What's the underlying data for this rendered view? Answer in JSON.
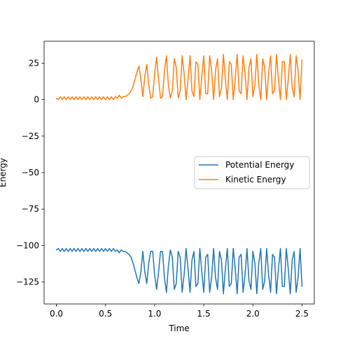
{
  "chart_data": {
    "type": "line",
    "title": "",
    "xlabel": "Time",
    "ylabel": "Energy",
    "xlim": [
      -0.125,
      2.625
    ],
    "ylim": [
      -140,
      40
    ],
    "xticks": [
      0.0,
      0.5,
      1.0,
      1.5,
      2.0,
      2.5
    ],
    "xtick_labels": [
      "0.0",
      "0.5",
      "1.0",
      "1.5",
      "2.0",
      "2.5"
    ],
    "yticks": [
      25,
      0,
      -25,
      -50,
      -75,
      -100,
      -125
    ],
    "ytick_labels": [
      "25",
      "0",
      "−25",
      "−50",
      "−75",
      "−100",
      "−125"
    ],
    "grid": false,
    "legend_position": "center-right",
    "series": [
      {
        "name": "Potential Energy",
        "color": "#1f77b4",
        "x": [
          0.0,
          0.02,
          0.04,
          0.06,
          0.08,
          0.1,
          0.12,
          0.14,
          0.16,
          0.18,
          0.2,
          0.22,
          0.24,
          0.26,
          0.28,
          0.3,
          0.32,
          0.34,
          0.36,
          0.38,
          0.4,
          0.42,
          0.44,
          0.46,
          0.48,
          0.5,
          0.52,
          0.54,
          0.56,
          0.58,
          0.6,
          0.62,
          0.64,
          0.66,
          0.68,
          0.7,
          0.72,
          0.74,
          0.76,
          0.78,
          0.8,
          0.82,
          0.84,
          0.86,
          0.88,
          0.9,
          0.92,
          0.94,
          0.96,
          0.98,
          1.0,
          1.02,
          1.04,
          1.06,
          1.08,
          1.1,
          1.12,
          1.14,
          1.16,
          1.18,
          1.2,
          1.22,
          1.24,
          1.26,
          1.28,
          1.3,
          1.32,
          1.34,
          1.36,
          1.38,
          1.4,
          1.42,
          1.44,
          1.46,
          1.48,
          1.5,
          1.52,
          1.54,
          1.56,
          1.58,
          1.6,
          1.62,
          1.64,
          1.66,
          1.68,
          1.7,
          1.72,
          1.74,
          1.76,
          1.78,
          1.8,
          1.82,
          1.84,
          1.86,
          1.88,
          1.9,
          1.92,
          1.94,
          1.96,
          1.98,
          2.0,
          2.02,
          2.04,
          2.06,
          2.08,
          2.1,
          2.12,
          2.14,
          2.16,
          2.18,
          2.2,
          2.22,
          2.24,
          2.26,
          2.28,
          2.3,
          2.32,
          2.34,
          2.36,
          2.38,
          2.4,
          2.42,
          2.44,
          2.46,
          2.48,
          2.5
        ],
        "values": [
          -103,
          -102,
          -104,
          -102,
          -104,
          -102,
          -104,
          -102,
          -104,
          -102,
          -104,
          -102,
          -104,
          -102,
          -104,
          -102,
          -104,
          -102,
          -104,
          -102,
          -104,
          -102,
          -104,
          -102,
          -104,
          -102,
          -104,
          -102,
          -104,
          -102,
          -104,
          -103,
          -105,
          -103,
          -104,
          -104,
          -105,
          -106,
          -108,
          -112,
          -117,
          -122,
          -126,
          -118,
          -104,
          -118,
          -126,
          -112,
          -104,
          -104,
          -120,
          -130,
          -118,
          -104,
          -104,
          -122,
          -132,
          -114,
          -103,
          -108,
          -130,
          -126,
          -104,
          -108,
          -132,
          -120,
          -102,
          -116,
          -132,
          -110,
          -104,
          -128,
          -126,
          -102,
          -118,
          -132,
          -108,
          -106,
          -132,
          -122,
          -102,
          -122,
          -130,
          -104,
          -110,
          -133,
          -116,
          -102,
          -128,
          -126,
          -102,
          -116,
          -133,
          -108,
          -106,
          -132,
          -120,
          -102,
          -124,
          -130,
          -104,
          -112,
          -133,
          -112,
          -102,
          -130,
          -124,
          -102,
          -120,
          -132,
          -106,
          -108,
          -133,
          -116,
          -102,
          -128,
          -128,
          -102,
          -116,
          -133,
          -110,
          -104,
          -132,
          -122,
          -102,
          -128
        ]
      },
      {
        "name": "Kinetic Energy",
        "color": "#ff7f0e",
        "x": [
          0.0,
          0.02,
          0.04,
          0.06,
          0.08,
          0.1,
          0.12,
          0.14,
          0.16,
          0.18,
          0.2,
          0.22,
          0.24,
          0.26,
          0.28,
          0.3,
          0.32,
          0.34,
          0.36,
          0.38,
          0.4,
          0.42,
          0.44,
          0.46,
          0.48,
          0.5,
          0.52,
          0.54,
          0.56,
          0.58,
          0.6,
          0.62,
          0.64,
          0.66,
          0.68,
          0.7,
          0.72,
          0.74,
          0.76,
          0.78,
          0.8,
          0.82,
          0.84,
          0.86,
          0.88,
          0.9,
          0.92,
          0.94,
          0.96,
          0.98,
          1.0,
          1.02,
          1.04,
          1.06,
          1.08,
          1.1,
          1.12,
          1.14,
          1.16,
          1.18,
          1.2,
          1.22,
          1.24,
          1.26,
          1.28,
          1.3,
          1.32,
          1.34,
          1.36,
          1.38,
          1.4,
          1.42,
          1.44,
          1.46,
          1.48,
          1.5,
          1.52,
          1.54,
          1.56,
          1.58,
          1.6,
          1.62,
          1.64,
          1.66,
          1.68,
          1.7,
          1.72,
          1.74,
          1.76,
          1.78,
          1.8,
          1.82,
          1.84,
          1.86,
          1.88,
          1.9,
          1.92,
          1.94,
          1.96,
          1.98,
          2.0,
          2.02,
          2.04,
          2.06,
          2.08,
          2.1,
          2.12,
          2.14,
          2.16,
          2.18,
          2.2,
          2.22,
          2.24,
          2.26,
          2.28,
          2.3,
          2.32,
          2.34,
          2.36,
          2.38,
          2.4,
          2.42,
          2.44,
          2.46,
          2.48,
          2.5
        ],
        "values": [
          1,
          0,
          2,
          0,
          2,
          0,
          2,
          0,
          2,
          0,
          2,
          0,
          2,
          0,
          2,
          0,
          2,
          0,
          2,
          0,
          2,
          0,
          2,
          0,
          2,
          0,
          2,
          0,
          2,
          0,
          2,
          1,
          3,
          1,
          2,
          2,
          3,
          4,
          6,
          9,
          14,
          19,
          23,
          14,
          2,
          16,
          24,
          10,
          1,
          2,
          18,
          29,
          14,
          1,
          2,
          20,
          30,
          10,
          1,
          6,
          28,
          22,
          1,
          6,
          30,
          18,
          0,
          14,
          30,
          6,
          2,
          26,
          24,
          0,
          16,
          30,
          4,
          4,
          30,
          20,
          0,
          20,
          28,
          2,
          8,
          31,
          14,
          0,
          26,
          24,
          0,
          14,
          31,
          6,
          4,
          30,
          18,
          0,
          22,
          28,
          2,
          10,
          31,
          10,
          0,
          28,
          22,
          0,
          18,
          30,
          4,
          6,
          31,
          14,
          0,
          26,
          26,
          0,
          14,
          31,
          8,
          2,
          30,
          20,
          0,
          27
        ]
      }
    ]
  }
}
